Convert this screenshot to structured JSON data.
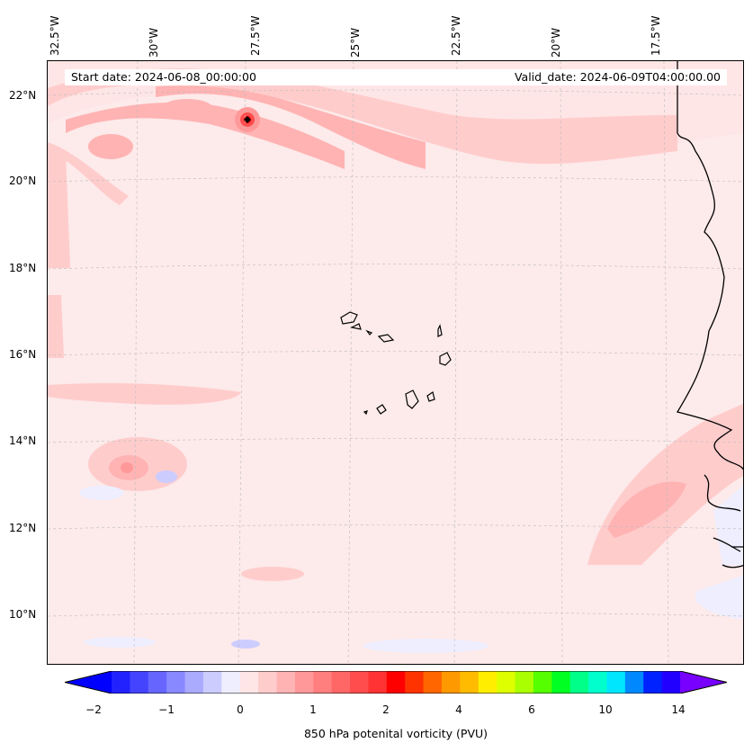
{
  "map": {
    "start_date": "Start date: 2024-06-08_00:00:00",
    "valid_date": "Valid_date: 2024-06-09T04:00:00.00",
    "longitude_labels": [
      "32.5°W",
      "30°W",
      "27.5°W",
      "25°W",
      "22.5°W",
      "20°W",
      "17.5°W"
    ],
    "latitude_labels": [
      "22°N",
      "20°N",
      "18°N",
      "16°N",
      "14°N",
      "12°N",
      "10°N"
    ]
  },
  "colorbar": {
    "title": "850 hPa potenital vorticity (PVU)",
    "tick_labels": [
      "−2",
      "−1",
      "0",
      "1",
      "2",
      "4",
      "6",
      "10",
      "14"
    ],
    "colors": [
      "#0000ff",
      "#2222ff",
      "#4444ff",
      "#6666ff",
      "#8888ff",
      "#aaaaff",
      "#ccccff",
      "#eeeeff",
      "#ffe6e6",
      "#ffcccc",
      "#ffb3b3",
      "#ff9999",
      "#ff7f7f",
      "#ff6666",
      "#ff4d4d",
      "#ff3333",
      "#ff0000",
      "#ff3300",
      "#ff6600",
      "#ff9900",
      "#ffbb00",
      "#ffee00",
      "#ddff00",
      "#aaff00",
      "#55ff00",
      "#00ff22",
      "#00ff88",
      "#00ffcc",
      "#00e6ff",
      "#0088ff",
      "#0022ff",
      "#2200ff",
      "#7700ff"
    ]
  }
}
